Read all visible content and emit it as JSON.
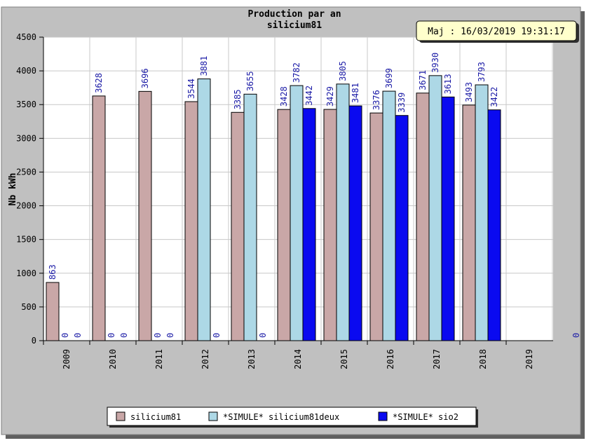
{
  "chart_data": {
    "type": "bar",
    "title": "Production par an",
    "subtitle": "silicium81",
    "ylabel": "Nb kWh",
    "xlabel": "",
    "ylim": [
      0,
      4500
    ],
    "yticks": [
      0,
      500,
      1000,
      1500,
      2000,
      2500,
      3000,
      3500,
      4000,
      4500
    ],
    "categories": [
      "2009",
      "2010",
      "2011",
      "2012",
      "2013",
      "2014",
      "2015",
      "2016",
      "2017",
      "2018",
      "2019"
    ],
    "series": [
      {
        "name": "silicium81",
        "color": "#c9a7a7",
        "values": [
          863,
          3628,
          3696,
          3544,
          3385,
          3428,
          3429,
          3376,
          3671,
          3493,
          0
        ],
        "labels": [
          "863",
          "3628",
          "3696",
          "3544",
          "3385",
          "3428",
          "3429",
          "3376",
          "3671",
          "3493",
          ""
        ]
      },
      {
        "name": "*SIMULE* silicium81deux",
        "color": "#add8e6",
        "values": [
          0,
          0,
          0,
          3881,
          3655,
          3782,
          3805,
          3699,
          3930,
          3793,
          0
        ],
        "labels": [
          "0",
          "0",
          "0",
          "3881",
          "3655",
          "3782",
          "3805",
          "3699",
          "3930",
          "3793",
          ""
        ]
      },
      {
        "name": "*SIMULE* sio2",
        "color": "#0a0af0",
        "values": [
          0,
          0,
          0,
          0,
          0,
          3442,
          3481,
          3339,
          3613,
          3422,
          0
        ],
        "labels": [
          "0",
          "0",
          "0",
          "0",
          "0",
          "3442",
          "3481",
          "3339",
          "3613",
          "3422",
          ""
        ]
      }
    ],
    "extra_label": "0",
    "grid": true,
    "legend_position": "bottom",
    "background": "#ffffff",
    "plot_background": "#ffffff",
    "frame_background": "#c0c0c0"
  },
  "update_box": {
    "text": "Maj : 16/03/2019 19:31:17",
    "background": "#ffffcc"
  }
}
